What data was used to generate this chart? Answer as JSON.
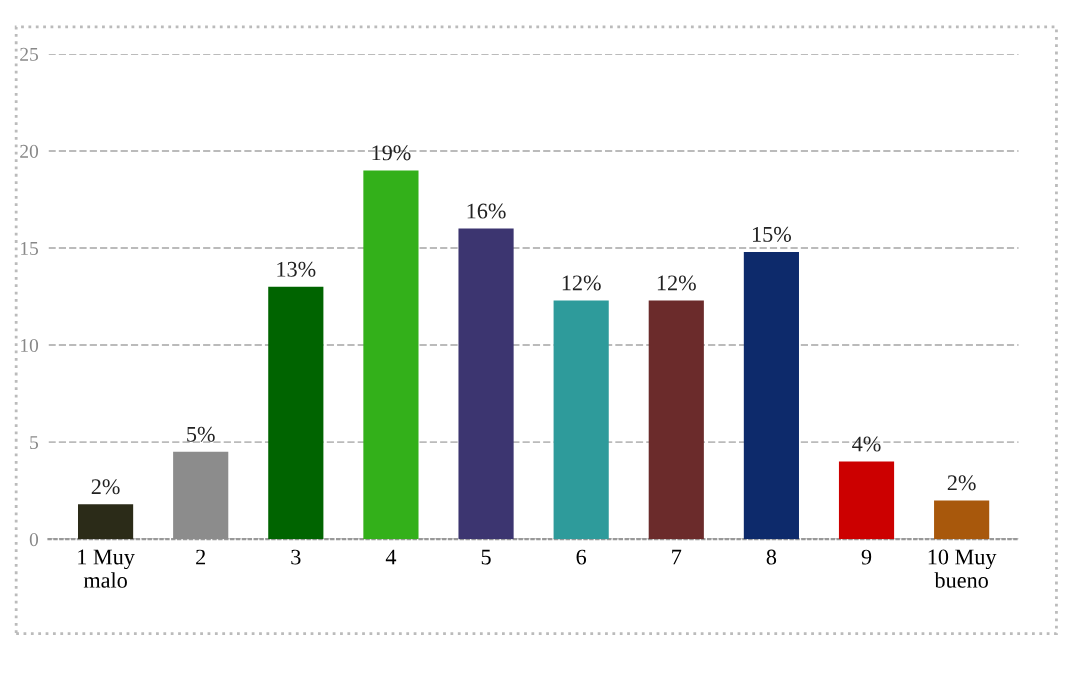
{
  "chart_data": {
    "type": "bar",
    "categories": [
      "1 Muy\nmalo",
      "2",
      "3",
      "4",
      "5",
      "6",
      "7",
      "8",
      "9",
      "10 Muy\nbueno"
    ],
    "values": [
      1.8,
      4.5,
      13.0,
      19.0,
      16.0,
      12.3,
      12.3,
      14.8,
      4.0,
      2.0
    ],
    "colors": [
      "#2b2b18",
      "#8c8c8c",
      "#006400",
      "#33b01a",
      "#3c3570",
      "#2e9b9b",
      "#6b2b2b",
      "#0d2a6b",
      "#cc0000",
      "#a8580c"
    ],
    "value_labels": [
      "2%",
      "5%",
      "13%",
      "19%",
      "16%",
      "12%",
      "12%",
      "15%",
      "4%",
      "2%"
    ],
    "ylim": [
      0,
      25
    ],
    "yticks": [
      0,
      5,
      10,
      15,
      20,
      25
    ],
    "grid": "y"
  }
}
